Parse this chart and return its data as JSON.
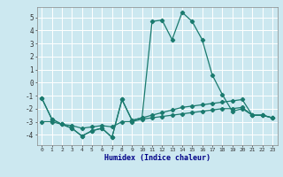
{
  "xlabel": "Humidex (Indice chaleur)",
  "x": [
    0,
    1,
    2,
    3,
    4,
    5,
    6,
    7,
    8,
    9,
    10,
    11,
    12,
    13,
    14,
    15,
    16,
    17,
    18,
    19,
    20,
    21,
    22,
    23
  ],
  "line1": [
    -1.2,
    -2.8,
    -3.2,
    -3.5,
    -4.1,
    -3.7,
    -3.5,
    -4.2,
    -1.3,
    -2.9,
    -2.7,
    4.7,
    4.8,
    3.3,
    5.4,
    4.7,
    3.3,
    0.6,
    -0.9,
    -2.2,
    -2.0,
    -2.5,
    -2.5,
    -2.7
  ],
  "line2": [
    -1.2,
    -2.8,
    -3.2,
    -3.5,
    -4.1,
    -3.7,
    -3.5,
    -4.2,
    -1.3,
    -2.9,
    -2.7,
    -2.5,
    -2.3,
    -2.1,
    -1.9,
    -1.8,
    -1.7,
    -1.6,
    -1.5,
    -1.4,
    -1.3,
    -2.5,
    -2.5,
    -2.7
  ],
  "line3": [
    -3.0,
    -3.0,
    -3.2,
    -3.3,
    -3.5,
    -3.4,
    -3.3,
    -3.4,
    -3.0,
    -3.0,
    -2.8,
    -2.7,
    -2.6,
    -2.5,
    -2.4,
    -2.3,
    -2.2,
    -2.1,
    -2.0,
    -2.0,
    -1.9,
    -2.5,
    -2.5,
    -2.7
  ],
  "line_color": "#1a7a6e",
  "bg_color": "#cce8f0",
  "grid_color": "#ffffff",
  "ylim": [
    -4.8,
    5.8
  ],
  "yticks": [
    -4,
    -3,
    -2,
    -1,
    0,
    1,
    2,
    3,
    4,
    5
  ],
  "xticks": [
    0,
    1,
    2,
    3,
    4,
    5,
    6,
    7,
    8,
    9,
    10,
    11,
    12,
    13,
    14,
    15,
    16,
    17,
    18,
    19,
    20,
    21,
    22,
    23
  ],
  "marker": "D",
  "markersize": 2.2,
  "linewidth": 0.9
}
